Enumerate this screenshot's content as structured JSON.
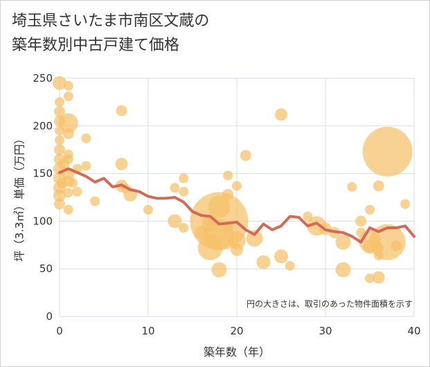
{
  "chart_data": {
    "type": "scatter",
    "title": "埼玉県さいたま市南区文蔵の\n築年数別中古戸建て価格",
    "xlabel": "築年数（年）",
    "ylabel": "坪（3.3㎡）単価（万円）",
    "xlim": [
      0,
      40
    ],
    "ylim": [
      0,
      250
    ],
    "x_ticks": [
      0,
      10,
      20,
      30,
      40
    ],
    "y_ticks": [
      0,
      50,
      100,
      150,
      200,
      250
    ],
    "grid": true,
    "annotation": "円の大きさは、取引のあった物件面積を示す",
    "colors": {
      "bubble": "#f5c06a",
      "line": "#d46a55",
      "grid": "#d6dde6"
    },
    "series": [
      {
        "type": "bubble",
        "points": [
          {
            "x": 0,
            "y": 245,
            "size": 10
          },
          {
            "x": 0,
            "y": 225,
            "size": 7
          },
          {
            "x": 0,
            "y": 215,
            "size": 8
          },
          {
            "x": 0,
            "y": 205,
            "size": 8
          },
          {
            "x": 0,
            "y": 195,
            "size": 7
          },
          {
            "x": 0,
            "y": 185,
            "size": 7
          },
          {
            "x": 0,
            "y": 175,
            "size": 8
          },
          {
            "x": 0,
            "y": 165,
            "size": 8
          },
          {
            "x": 0,
            "y": 155,
            "size": 9
          },
          {
            "x": 0,
            "y": 145,
            "size": 9
          },
          {
            "x": 0,
            "y": 135,
            "size": 9
          },
          {
            "x": 0,
            "y": 127,
            "size": 9
          },
          {
            "x": 0,
            "y": 118,
            "size": 8
          },
          {
            "x": 0.3,
            "y": 140,
            "size": 8
          },
          {
            "x": 0.5,
            "y": 160,
            "size": 8
          },
          {
            "x": 1,
            "y": 242,
            "size": 7
          },
          {
            "x": 1,
            "y": 231,
            "size": 7
          },
          {
            "x": 1,
            "y": 203,
            "size": 14
          },
          {
            "x": 1,
            "y": 192,
            "size": 8
          },
          {
            "x": 1,
            "y": 170,
            "size": 7
          },
          {
            "x": 1,
            "y": 165,
            "size": 7
          },
          {
            "x": 1,
            "y": 150,
            "size": 9
          },
          {
            "x": 1,
            "y": 142,
            "size": 8
          },
          {
            "x": 1,
            "y": 130,
            "size": 7
          },
          {
            "x": 1,
            "y": 112,
            "size": 7
          },
          {
            "x": 1.5,
            "y": 140,
            "size": 7
          },
          {
            "x": 2,
            "y": 155,
            "size": 7
          },
          {
            "x": 2,
            "y": 131,
            "size": 7
          },
          {
            "x": 3,
            "y": 187,
            "size": 7
          },
          {
            "x": 3,
            "y": 158,
            "size": 7
          },
          {
            "x": 4,
            "y": 121,
            "size": 7
          },
          {
            "x": 7,
            "y": 216,
            "size": 8
          },
          {
            "x": 7,
            "y": 160,
            "size": 9
          },
          {
            "x": 7,
            "y": 137,
            "size": 9
          },
          {
            "x": 7.5,
            "y": 134,
            "size": 7
          },
          {
            "x": 8,
            "y": 128,
            "size": 10
          },
          {
            "x": 10,
            "y": 112,
            "size": 7
          },
          {
            "x": 13,
            "y": 135,
            "size": 7
          },
          {
            "x": 13,
            "y": 100,
            "size": 10
          },
          {
            "x": 14,
            "y": 145,
            "size": 7
          },
          {
            "x": 14,
            "y": 131,
            "size": 7
          },
          {
            "x": 14,
            "y": 93,
            "size": 7
          },
          {
            "x": 16,
            "y": 88,
            "size": 10
          },
          {
            "x": 17,
            "y": 98,
            "size": 12
          },
          {
            "x": 17,
            "y": 72,
            "size": 18
          },
          {
            "x": 18,
            "y": 100,
            "size": 42
          },
          {
            "x": 18,
            "y": 115,
            "size": 16
          },
          {
            "x": 18,
            "y": 86,
            "size": 22
          },
          {
            "x": 18,
            "y": 49,
            "size": 11
          },
          {
            "x": 19,
            "y": 148,
            "size": 7
          },
          {
            "x": 19,
            "y": 128,
            "size": 8
          },
          {
            "x": 19,
            "y": 94,
            "size": 8
          },
          {
            "x": 20,
            "y": 137,
            "size": 7
          },
          {
            "x": 20,
            "y": 80,
            "size": 13
          },
          {
            "x": 20,
            "y": 70,
            "size": 9
          },
          {
            "x": 21,
            "y": 169,
            "size": 8
          },
          {
            "x": 22,
            "y": 82,
            "size": 12
          },
          {
            "x": 23,
            "y": 57,
            "size": 10
          },
          {
            "x": 25,
            "y": 212,
            "size": 9
          },
          {
            "x": 25,
            "y": 63,
            "size": 10
          },
          {
            "x": 26,
            "y": 53,
            "size": 7
          },
          {
            "x": 28,
            "y": 105,
            "size": 7
          },
          {
            "x": 29,
            "y": 95,
            "size": 14
          },
          {
            "x": 30,
            "y": 92,
            "size": 9
          },
          {
            "x": 31,
            "y": 88,
            "size": 8
          },
          {
            "x": 32,
            "y": 78,
            "size": 11
          },
          {
            "x": 32,
            "y": 49,
            "size": 11
          },
          {
            "x": 33,
            "y": 136,
            "size": 7
          },
          {
            "x": 34,
            "y": 100,
            "size": 8
          },
          {
            "x": 34,
            "y": 88,
            "size": 7
          },
          {
            "x": 35,
            "y": 112,
            "size": 7
          },
          {
            "x": 35,
            "y": 40,
            "size": 7
          },
          {
            "x": 35,
            "y": 79,
            "size": 16
          },
          {
            "x": 35,
            "y": 73,
            "size": 10
          },
          {
            "x": 36,
            "y": 137,
            "size": 8
          },
          {
            "x": 36,
            "y": 72,
            "size": 7
          },
          {
            "x": 36,
            "y": 64,
            "size": 7
          },
          {
            "x": 36,
            "y": 41,
            "size": 9
          },
          {
            "x": 37,
            "y": 173,
            "size": 36
          },
          {
            "x": 37,
            "y": 78,
            "size": 26
          },
          {
            "x": 38,
            "y": 74,
            "size": 8
          },
          {
            "x": 39,
            "y": 118,
            "size": 7
          }
        ]
      },
      {
        "type": "line",
        "x": [
          0,
          1,
          2,
          3,
          4,
          5,
          6,
          7,
          8,
          9,
          10,
          11,
          12,
          13,
          14,
          15,
          16,
          17,
          18,
          19,
          20,
          21,
          22,
          23,
          24,
          25,
          26,
          27,
          28,
          29,
          30,
          31,
          32,
          33,
          34,
          35,
          36,
          37,
          38,
          39,
          40
        ],
        "y": [
          151,
          155,
          151,
          147,
          141,
          145,
          136,
          138,
          133,
          131,
          126,
          124,
          124,
          125,
          120,
          110,
          106,
          105,
          97,
          98,
          99,
          91,
          86,
          97,
          91,
          95,
          105,
          104,
          95,
          98,
          91,
          89,
          88,
          84,
          78,
          93,
          89,
          93,
          93,
          95,
          84
        ]
      }
    ]
  }
}
